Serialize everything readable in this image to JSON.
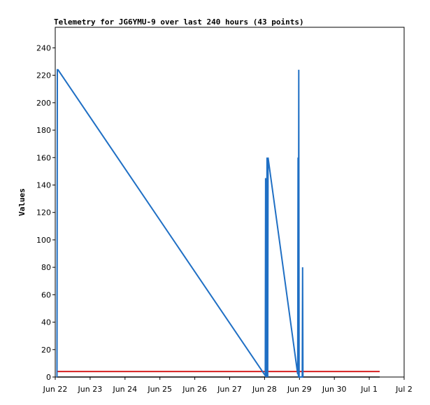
{
  "chart_data": {
    "type": "line",
    "title": "Telemetry for JG6YMU-9 over last 240 hours (43 points)",
    "xlabel": "",
    "ylabel": "Values",
    "ylim": [
      0,
      255
    ],
    "xlim": [
      0,
      10
    ],
    "y_ticks": [
      0,
      20,
      40,
      60,
      80,
      100,
      120,
      140,
      160,
      180,
      200,
      220,
      240
    ],
    "x_ticks": [
      {
        "v": 0,
        "label": "Jun 22"
      },
      {
        "v": 1,
        "label": "Jun 23"
      },
      {
        "v": 2,
        "label": "Jun 24"
      },
      {
        "v": 3,
        "label": "Jun 25"
      },
      {
        "v": 4,
        "label": "Jun 26"
      },
      {
        "v": 5,
        "label": "Jun 27"
      },
      {
        "v": 6,
        "label": "Jun 28"
      },
      {
        "v": 7,
        "label": "Jun 29"
      },
      {
        "v": 8,
        "label": "Jun 30"
      },
      {
        "v": 9,
        "label": "Jul 1"
      },
      {
        "v": 10,
        "label": "Jul 2"
      }
    ],
    "grid": false,
    "colors": {
      "series1": "#1f6fc4",
      "series2": "#d62020",
      "baseline": "#000000"
    },
    "series": [
      {
        "points": [
          [
            0.05,
            0
          ],
          [
            0.06,
            224
          ],
          [
            0.08,
            224
          ],
          [
            6.02,
            1
          ],
          [
            6.03,
            145
          ],
          [
            6.05,
            0
          ],
          [
            6.07,
            160
          ],
          [
            6.09,
            0
          ],
          [
            6.1,
            160
          ],
          [
            6.95,
            2
          ],
          [
            6.96,
            160
          ],
          [
            6.97,
            0
          ],
          [
            6.98,
            224
          ],
          [
            6.99,
            0
          ],
          [
            7.08,
            0
          ],
          [
            7.09,
            80
          ],
          [
            7.1,
            0
          ]
        ]
      },
      {
        "points": [
          [
            0.05,
            4
          ],
          [
            9.3,
            4
          ]
        ]
      },
      {
        "points": [
          [
            0.05,
            0
          ],
          [
            9.3,
            0
          ]
        ]
      }
    ]
  }
}
